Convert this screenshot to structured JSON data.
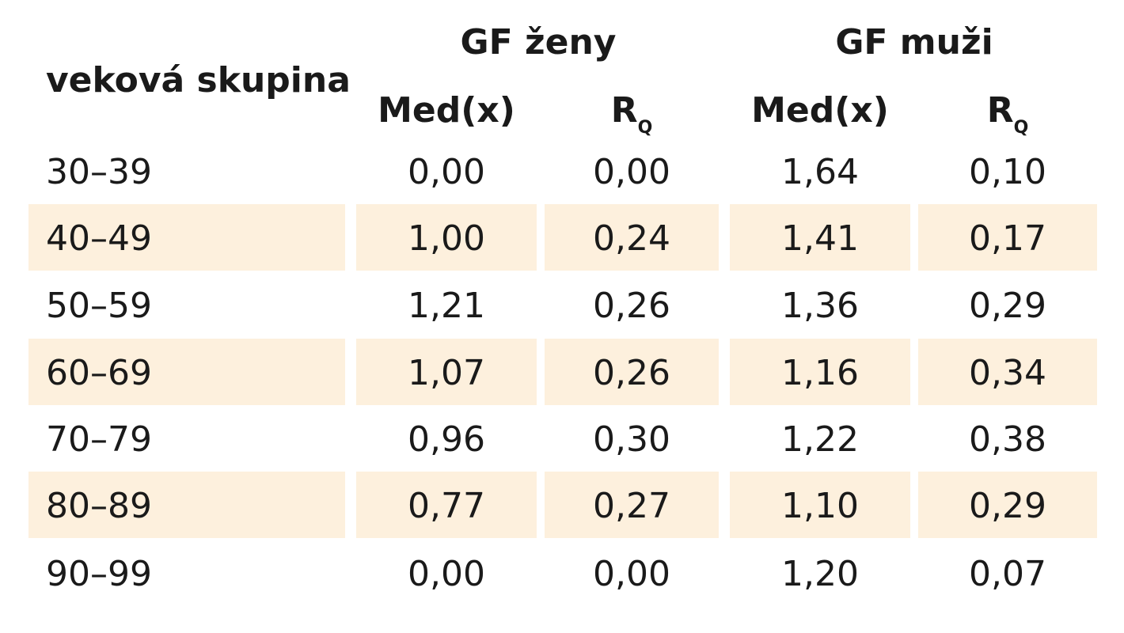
{
  "header": {
    "group_col_label": "veková skupina",
    "women_group": "GF ženy",
    "men_group": "GF muži",
    "med_label": "Med(x)",
    "rq_main": "R",
    "rq_sub": "Q"
  },
  "rows": [
    {
      "age": "30–39",
      "w_med": "0,00",
      "w_rq": "0,00",
      "m_med": "1,64",
      "m_rq": "0,10"
    },
    {
      "age": "40–49",
      "w_med": "1,00",
      "w_rq": "0,24",
      "m_med": "1,41",
      "m_rq": "0,17"
    },
    {
      "age": "50–59",
      "w_med": "1,21",
      "w_rq": "0,26",
      "m_med": "1,36",
      "m_rq": "0,29"
    },
    {
      "age": "60–69",
      "w_med": "1,07",
      "w_rq": "0,26",
      "m_med": "1,16",
      "m_rq": "0,34"
    },
    {
      "age": "70–79",
      "w_med": "0,96",
      "w_rq": "0,30",
      "m_med": "1,22",
      "m_rq": "0,38"
    },
    {
      "age": "80–89",
      "w_med": "0,77",
      "w_rq": "0,27",
      "m_med": "1,10",
      "m_rq": "0,29"
    },
    {
      "age": "90–99",
      "w_med": "0,00",
      "w_rq": "0,00",
      "m_med": "1,20",
      "m_rq": "0,07"
    }
  ],
  "colors": {
    "shade": "#fdf0dd",
    "text": "#1a1a1a"
  }
}
